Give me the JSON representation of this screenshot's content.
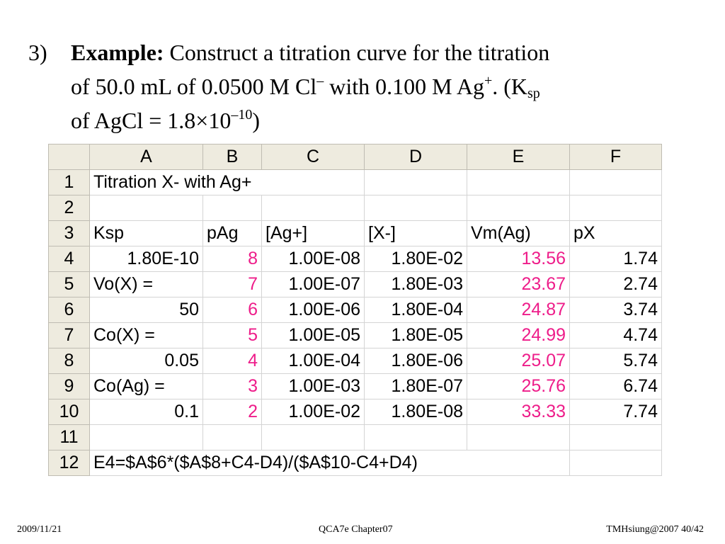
{
  "heading": {
    "number": "3)",
    "bold": "Example:",
    "text1": " Construct a titration curve for the titration",
    "text2": "of 50.0 mL of 0.0500 M Cl",
    "sup1": "–",
    "text3": " with 0.100 M Ag",
    "sup2": "+",
    "text4": ". (K",
    "sub1": "sp",
    "text5": "of AgCl = 1.8×10",
    "sup3": "–10",
    "text6": ")"
  },
  "sheet": {
    "columns": [
      "A",
      "B",
      "C",
      "D",
      "E",
      "F"
    ],
    "rows": [
      {
        "n": "1",
        "cells": [
          "Titration X- with Ag+",
          "",
          "",
          "",
          "",
          ""
        ]
      },
      {
        "n": "2",
        "cells": [
          "",
          "",
          "",
          "",
          "",
          ""
        ]
      },
      {
        "n": "3",
        "cells": [
          "Ksp",
          "pAg",
          "[Ag+]",
          "[X-]",
          "Vm(Ag)",
          "pX"
        ]
      },
      {
        "n": "4",
        "cells": [
          "1.80E-10",
          "8",
          "1.00E-08",
          "1.80E-02",
          "13.56",
          "1.74"
        ]
      },
      {
        "n": "5",
        "cells": [
          "Vo(X) =",
          "7",
          "1.00E-07",
          "1.80E-03",
          "23.67",
          "2.74"
        ]
      },
      {
        "n": "6",
        "cells": [
          "50",
          "6",
          "1.00E-06",
          "1.80E-04",
          "24.87",
          "3.74"
        ]
      },
      {
        "n": "7",
        "cells": [
          "Co(X) =",
          "5",
          "1.00E-05",
          "1.80E-05",
          "24.99",
          "4.74"
        ]
      },
      {
        "n": "8",
        "cells": [
          "0.05",
          "4",
          "1.00E-04",
          "1.80E-06",
          "25.07",
          "5.74"
        ]
      },
      {
        "n": "9",
        "cells": [
          "Co(Ag) =",
          "3",
          "1.00E-03",
          "1.80E-07",
          "25.76",
          "6.74"
        ]
      },
      {
        "n": "10",
        "cells": [
          "0.1",
          "2",
          "1.00E-02",
          "1.80E-08",
          "33.33",
          "7.74"
        ]
      },
      {
        "n": "11",
        "cells": [
          "",
          "",
          "",
          "",
          "",
          ""
        ]
      },
      {
        "n": "12",
        "cells": [
          "E4=$A$6*($A$8+C4-D4)/($A$10-C4+D4)",
          "",
          "",
          "",
          "",
          ""
        ]
      }
    ],
    "highlight_color": "#ee1d8a"
  },
  "footer": {
    "date": "2009/11/21",
    "center": "QCA7e Chapter07",
    "right": "TMHsiung@2007 40/42"
  }
}
